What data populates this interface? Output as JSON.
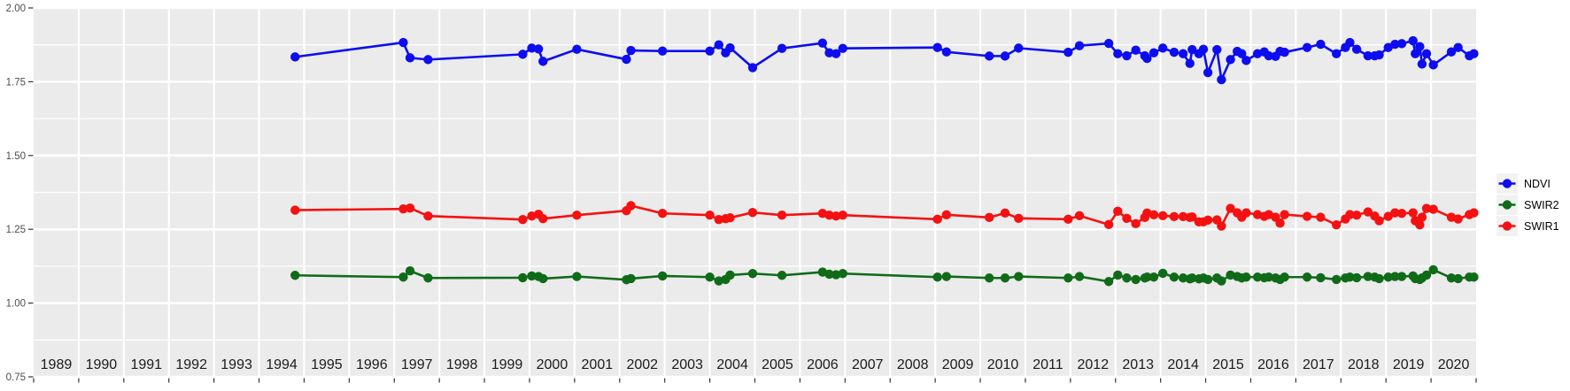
{
  "style": {
    "panel_bg": "#EBEBEB",
    "grid_color": "#FFFFFF",
    "axis_text_color": "#4D4D4D",
    "year_text_color": "#1C1C1C",
    "tick_color": "#333333",
    "legend_key_bg": "#F2F2F2",
    "legend_text_color": "#000000"
  },
  "chart_data": {
    "type": "line",
    "title": "",
    "xlabel": "",
    "ylabel": "",
    "grid": true,
    "legend_position": "right",
    "xlim": [
      1989,
      2021
    ],
    "ylim": [
      0.747,
      2.003
    ],
    "y_ticks": [
      2.0,
      1.75,
      1.5,
      1.25,
      1.0,
      0.75
    ],
    "y_tick_labels": [
      "2.00",
      "1.75",
      "1.50",
      "1.25",
      "1.00",
      "0.75"
    ],
    "x_tick_labels": [
      "1989",
      "1990",
      "1991",
      "1992",
      "1993",
      "1994",
      "1995",
      "1996",
      "1997",
      "1998",
      "1999",
      "2000",
      "2001",
      "2002",
      "2003",
      "2004",
      "2005",
      "2006",
      "2007",
      "2008",
      "2009",
      "2010",
      "2011",
      "2012",
      "2013",
      "2014",
      "2015",
      "2016",
      "2017",
      "2018",
      "2019",
      "2020"
    ],
    "x": [
      1994.8,
      1997.2,
      1997.35,
      1997.75,
      1999.85,
      2000.05,
      2000.2,
      2000.3,
      2001.05,
      2002.15,
      2002.25,
      2002.95,
      2004.0,
      2004.2,
      2004.35,
      2004.45,
      2004.95,
      2005.6,
      2006.5,
      2006.65,
      2006.8,
      2006.95,
      2009.05,
      2009.25,
      2010.2,
      2010.55,
      2010.85,
      2011.95,
      2012.2,
      2012.85,
      2013.05,
      2013.25,
      2013.45,
      2013.65,
      2013.7,
      2013.85,
      2014.05,
      2014.3,
      2014.5,
      2014.65,
      2014.7,
      2014.85,
      2014.95,
      2015.05,
      2015.25,
      2015.35,
      2015.55,
      2015.7,
      2015.8,
      2015.9,
      2016.15,
      2016.3,
      2016.4,
      2016.55,
      2016.65,
      2016.75,
      2017.25,
      2017.55,
      2017.9,
      2018.1,
      2018.2,
      2018.35,
      2018.6,
      2018.75,
      2018.85,
      2019.05,
      2019.2,
      2019.35,
      2019.6,
      2019.65,
      2019.75,
      2019.8,
      2019.9,
      2020.05,
      2020.45,
      2020.6,
      2020.85,
      2020.95
    ],
    "series": [
      {
        "name": "NDVI",
        "color": "#0D0DF0",
        "values": [
          1.834,
          1.883,
          1.831,
          1.825,
          1.843,
          1.864,
          1.861,
          1.819,
          1.86,
          1.826,
          1.856,
          1.854,
          1.854,
          1.875,
          1.848,
          1.865,
          1.798,
          1.863,
          1.881,
          1.848,
          1.845,
          1.863,
          1.866,
          1.851,
          1.837,
          1.837,
          1.864,
          1.85,
          1.872,
          1.88,
          1.845,
          1.838,
          1.857,
          1.838,
          1.829,
          1.848,
          1.864,
          1.85,
          1.845,
          1.812,
          1.859,
          1.845,
          1.86,
          1.781,
          1.859,
          1.757,
          1.825,
          1.853,
          1.845,
          1.822,
          1.845,
          1.851,
          1.838,
          1.836,
          1.853,
          1.85,
          1.866,
          1.877,
          1.845,
          1.866,
          1.883,
          1.86,
          1.838,
          1.838,
          1.841,
          1.866,
          1.877,
          1.879,
          1.889,
          1.845,
          1.869,
          1.81,
          1.845,
          1.807,
          1.851,
          1.866,
          1.838,
          1.845
        ]
      },
      {
        "name": "SWIR2",
        "color": "#106B19",
        "values": [
          1.094,
          1.088,
          1.109,
          1.085,
          1.086,
          1.092,
          1.09,
          1.083,
          1.09,
          1.079,
          1.083,
          1.092,
          1.088,
          1.075,
          1.08,
          1.095,
          1.1,
          1.094,
          1.105,
          1.098,
          1.096,
          1.1,
          1.088,
          1.09,
          1.085,
          1.085,
          1.09,
          1.085,
          1.09,
          1.073,
          1.095,
          1.085,
          1.08,
          1.085,
          1.088,
          1.088,
          1.101,
          1.088,
          1.085,
          1.082,
          1.085,
          1.082,
          1.085,
          1.08,
          1.085,
          1.075,
          1.095,
          1.09,
          1.085,
          1.088,
          1.088,
          1.086,
          1.088,
          1.085,
          1.08,
          1.088,
          1.088,
          1.086,
          1.08,
          1.085,
          1.088,
          1.086,
          1.09,
          1.088,
          1.083,
          1.088,
          1.09,
          1.09,
          1.092,
          1.083,
          1.08,
          1.085,
          1.095,
          1.113,
          1.085,
          1.083,
          1.088,
          1.088
        ]
      },
      {
        "name": "SWIR1",
        "color": "#F51111",
        "values": [
          1.315,
          1.319,
          1.322,
          1.295,
          1.283,
          1.295,
          1.301,
          1.286,
          1.298,
          1.313,
          1.33,
          1.304,
          1.298,
          1.283,
          1.286,
          1.289,
          1.307,
          1.298,
          1.304,
          1.298,
          1.295,
          1.298,
          1.284,
          1.299,
          1.29,
          1.305,
          1.287,
          1.284,
          1.296,
          1.266,
          1.311,
          1.287,
          1.269,
          1.29,
          1.305,
          1.299,
          1.296,
          1.293,
          1.293,
          1.29,
          1.292,
          1.275,
          1.275,
          1.281,
          1.282,
          1.261,
          1.321,
          1.306,
          1.291,
          1.306,
          1.3,
          1.294,
          1.3,
          1.291,
          1.271,
          1.3,
          1.294,
          1.291,
          1.265,
          1.285,
          1.3,
          1.298,
          1.309,
          1.295,
          1.279,
          1.294,
          1.306,
          1.304,
          1.306,
          1.279,
          1.265,
          1.291,
          1.321,
          1.318,
          1.291,
          1.285,
          1.3,
          1.306
        ]
      }
    ],
    "legend": {
      "items": [
        {
          "label": "NDVI",
          "color": "#0D0DF0"
        },
        {
          "label": "SWIR2",
          "color": "#106B19"
        },
        {
          "label": "SWIR1",
          "color": "#F51111"
        }
      ]
    }
  }
}
